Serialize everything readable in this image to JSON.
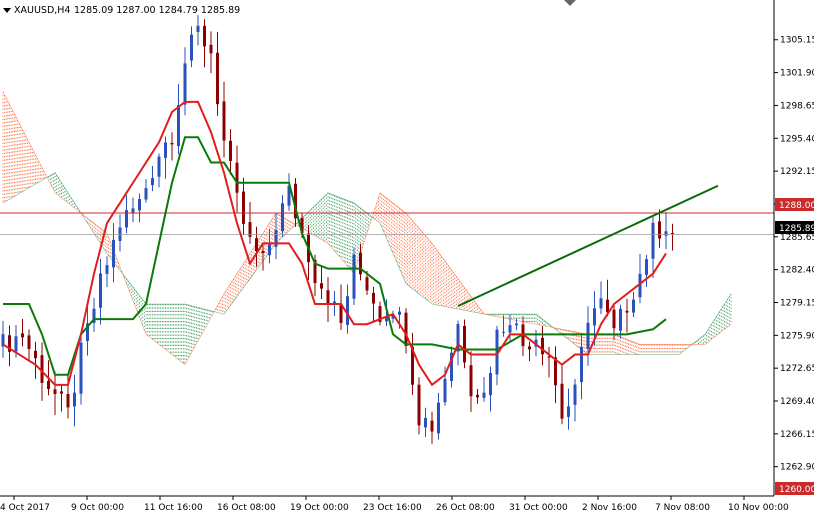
{
  "header": {
    "symbol": "XAUUSD,H4",
    "ohlc": "1285.09 1287.00 1284.79 1285.89"
  },
  "colors": {
    "background": "#ffffff",
    "bull_candle": "#2a52be",
    "bear_candle": "#8b0000",
    "tenkan": "#e11d1d",
    "kijun": "#0a7a0a",
    "cloud_bear": "#ff6a3d",
    "cloud_bull": "#3a9a5a",
    "trendline": "#0a6a0a",
    "hline": "#cc2a2a",
    "price_line": "#9a9a9a",
    "text": "#000000",
    "axis": "#000000"
  },
  "chart_data": {
    "type": "candlestick",
    "title": "XAUUSD,H4",
    "ylim": [
      1260.0,
      1307.5
    ],
    "y_ticks": [
      "1305.15",
      "1301.90",
      "1298.65",
      "1295.40",
      "1292.15",
      "1288.90",
      "1285.65",
      "1282.40",
      "1279.15",
      "1275.90",
      "1272.65",
      "1269.40",
      "1266.15",
      "1262.90"
    ],
    "x_tick_labels": [
      "4 Oct 2017",
      "9 Oct 00:00",
      "11 Oct 16:00",
      "16 Oct 08:00",
      "19 Oct 00:00",
      "23 Oct 16:00",
      "26 Oct 08:00",
      "31 Oct 00:00",
      "2 Nov 16:00",
      "7 Nov 08:00",
      "10 Nov 00:00"
    ],
    "price_labels": {
      "current": "1285.89",
      "resistance": "1288.00",
      "support": "1260.00"
    },
    "horizontal_lines": [
      1288.0,
      1260.0
    ],
    "current_price": 1285.89,
    "trendline": {
      "from": [
        70,
        1278.8
      ],
      "to": [
        110,
        1290.7
      ]
    },
    "close_anchors": [
      [
        0,
        1275
      ],
      [
        3,
        1276
      ],
      [
        6,
        1272
      ],
      [
        8,
        1270
      ],
      [
        10,
        1268
      ],
      [
        12,
        1274
      ],
      [
        15,
        1281
      ],
      [
        18,
        1287
      ],
      [
        21,
        1289
      ],
      [
        24,
        1294
      ],
      [
        26,
        1296
      ],
      [
        28,
        1303
      ],
      [
        30,
        1306
      ],
      [
        32,
        1304
      ],
      [
        34,
        1295
      ],
      [
        36,
        1289
      ],
      [
        38,
        1285
      ],
      [
        40,
        1283
      ],
      [
        42,
        1287
      ],
      [
        44,
        1290
      ],
      [
        46,
        1286
      ],
      [
        48,
        1282
      ],
      [
        50,
        1280
      ],
      [
        52,
        1277
      ],
      [
        54,
        1283
      ],
      [
        56,
        1281
      ],
      [
        58,
        1278
      ],
      [
        60,
        1279
      ],
      [
        62,
        1276
      ],
      [
        64,
        1268
      ],
      [
        66,
        1267
      ],
      [
        68,
        1272
      ],
      [
        70,
        1277
      ],
      [
        72,
        1271
      ],
      [
        74,
        1270
      ],
      [
        76,
        1276
      ],
      [
        78,
        1278
      ],
      [
        80,
        1275
      ],
      [
        82,
        1276
      ],
      [
        84,
        1274
      ],
      [
        86,
        1268
      ],
      [
        88,
        1270
      ],
      [
        90,
        1278
      ],
      [
        92,
        1279
      ],
      [
        94,
        1276
      ],
      [
        96,
        1279
      ],
      [
        98,
        1282
      ],
      [
        100,
        1286
      ],
      [
        102,
        1287
      ],
      [
        103,
        1285.89
      ]
    ],
    "tenkan": [
      [
        0,
        1275
      ],
      [
        5,
        1273
      ],
      [
        8,
        1271
      ],
      [
        10,
        1271
      ],
      [
        12,
        1276
      ],
      [
        14,
        1282
      ],
      [
        16,
        1287
      ],
      [
        20,
        1291
      ],
      [
        24,
        1295
      ],
      [
        26,
        1298
      ],
      [
        28,
        1299
      ],
      [
        30,
        1299
      ],
      [
        32,
        1296
      ],
      [
        34,
        1292
      ],
      [
        36,
        1287
      ],
      [
        38,
        1283
      ],
      [
        40,
        1285
      ],
      [
        44,
        1285
      ],
      [
        46,
        1283
      ],
      [
        48,
        1279
      ],
      [
        52,
        1279
      ],
      [
        54,
        1277
      ],
      [
        56,
        1277
      ],
      [
        60,
        1278
      ],
      [
        62,
        1276
      ],
      [
        64,
        1273
      ],
      [
        66,
        1271
      ],
      [
        68,
        1272
      ],
      [
        70,
        1275
      ],
      [
        72,
        1274
      ],
      [
        76,
        1274
      ],
      [
        78,
        1276
      ],
      [
        80,
        1276
      ],
      [
        82,
        1275
      ],
      [
        84,
        1274
      ],
      [
        86,
        1273
      ],
      [
        88,
        1274
      ],
      [
        90,
        1274
      ],
      [
        92,
        1277
      ],
      [
        94,
        1279
      ],
      [
        96,
        1280
      ],
      [
        98,
        1281
      ],
      [
        100,
        1282
      ],
      [
        102,
        1284
      ]
    ],
    "kijun": [
      [
        0,
        1279
      ],
      [
        4,
        1279
      ],
      [
        6,
        1276
      ],
      [
        8,
        1272
      ],
      [
        10,
        1272
      ],
      [
        12,
        1276
      ],
      [
        14,
        1277.5
      ],
      [
        20,
        1277.5
      ],
      [
        22,
        1279
      ],
      [
        24,
        1285
      ],
      [
        26,
        1291
      ],
      [
        28,
        1295.5
      ],
      [
        30,
        1295.5
      ],
      [
        32,
        1293
      ],
      [
        34,
        1293
      ],
      [
        36,
        1291
      ],
      [
        44,
        1291
      ],
      [
        46,
        1286
      ],
      [
        48,
        1283
      ],
      [
        50,
        1282.5
      ],
      [
        55,
        1282.5
      ],
      [
        58,
        1281
      ],
      [
        60,
        1276
      ],
      [
        62,
        1275
      ],
      [
        66,
        1275
      ],
      [
        70,
        1274.5
      ],
      [
        76,
        1274.5
      ],
      [
        80,
        1276
      ],
      [
        84,
        1276
      ],
      [
        86,
        1276
      ],
      [
        88,
        1276
      ],
      [
        92,
        1276
      ],
      [
        94,
        1276
      ],
      [
        96,
        1276
      ],
      [
        100,
        1276.5
      ],
      [
        102,
        1277.5
      ]
    ],
    "cloud_a": [
      [
        0,
        1289
      ],
      [
        8,
        1292
      ],
      [
        16,
        1284
      ],
      [
        22,
        1279
      ],
      [
        28,
        1279
      ],
      [
        34,
        1278
      ],
      [
        42,
        1285
      ],
      [
        50,
        1290
      ],
      [
        54,
        1289
      ],
      [
        58,
        1287
      ],
      [
        62,
        1281
      ],
      [
        66,
        1279
      ],
      [
        74,
        1278
      ],
      [
        82,
        1278
      ],
      [
        90,
        1274
      ],
      [
        94,
        1274
      ],
      [
        98,
        1274
      ],
      [
        104,
        1274
      ],
      [
        108,
        1276
      ],
      [
        112,
        1280
      ]
    ],
    "cloud_b": [
      [
        0,
        1300
      ],
      [
        8,
        1290
      ],
      [
        16,
        1286
      ],
      [
        22,
        1276
      ],
      [
        28,
        1273
      ],
      [
        34,
        1280
      ],
      [
        42,
        1288
      ],
      [
        50,
        1285
      ],
      [
        54,
        1282
      ],
      [
        58,
        1290
      ],
      [
        62,
        1288
      ],
      [
        66,
        1285
      ],
      [
        74,
        1278
      ],
      [
        82,
        1277
      ],
      [
        90,
        1276
      ],
      [
        94,
        1276
      ],
      [
        98,
        1275
      ],
      [
        104,
        1275
      ],
      [
        108,
        1275
      ],
      [
        112,
        1277
      ]
    ]
  }
}
